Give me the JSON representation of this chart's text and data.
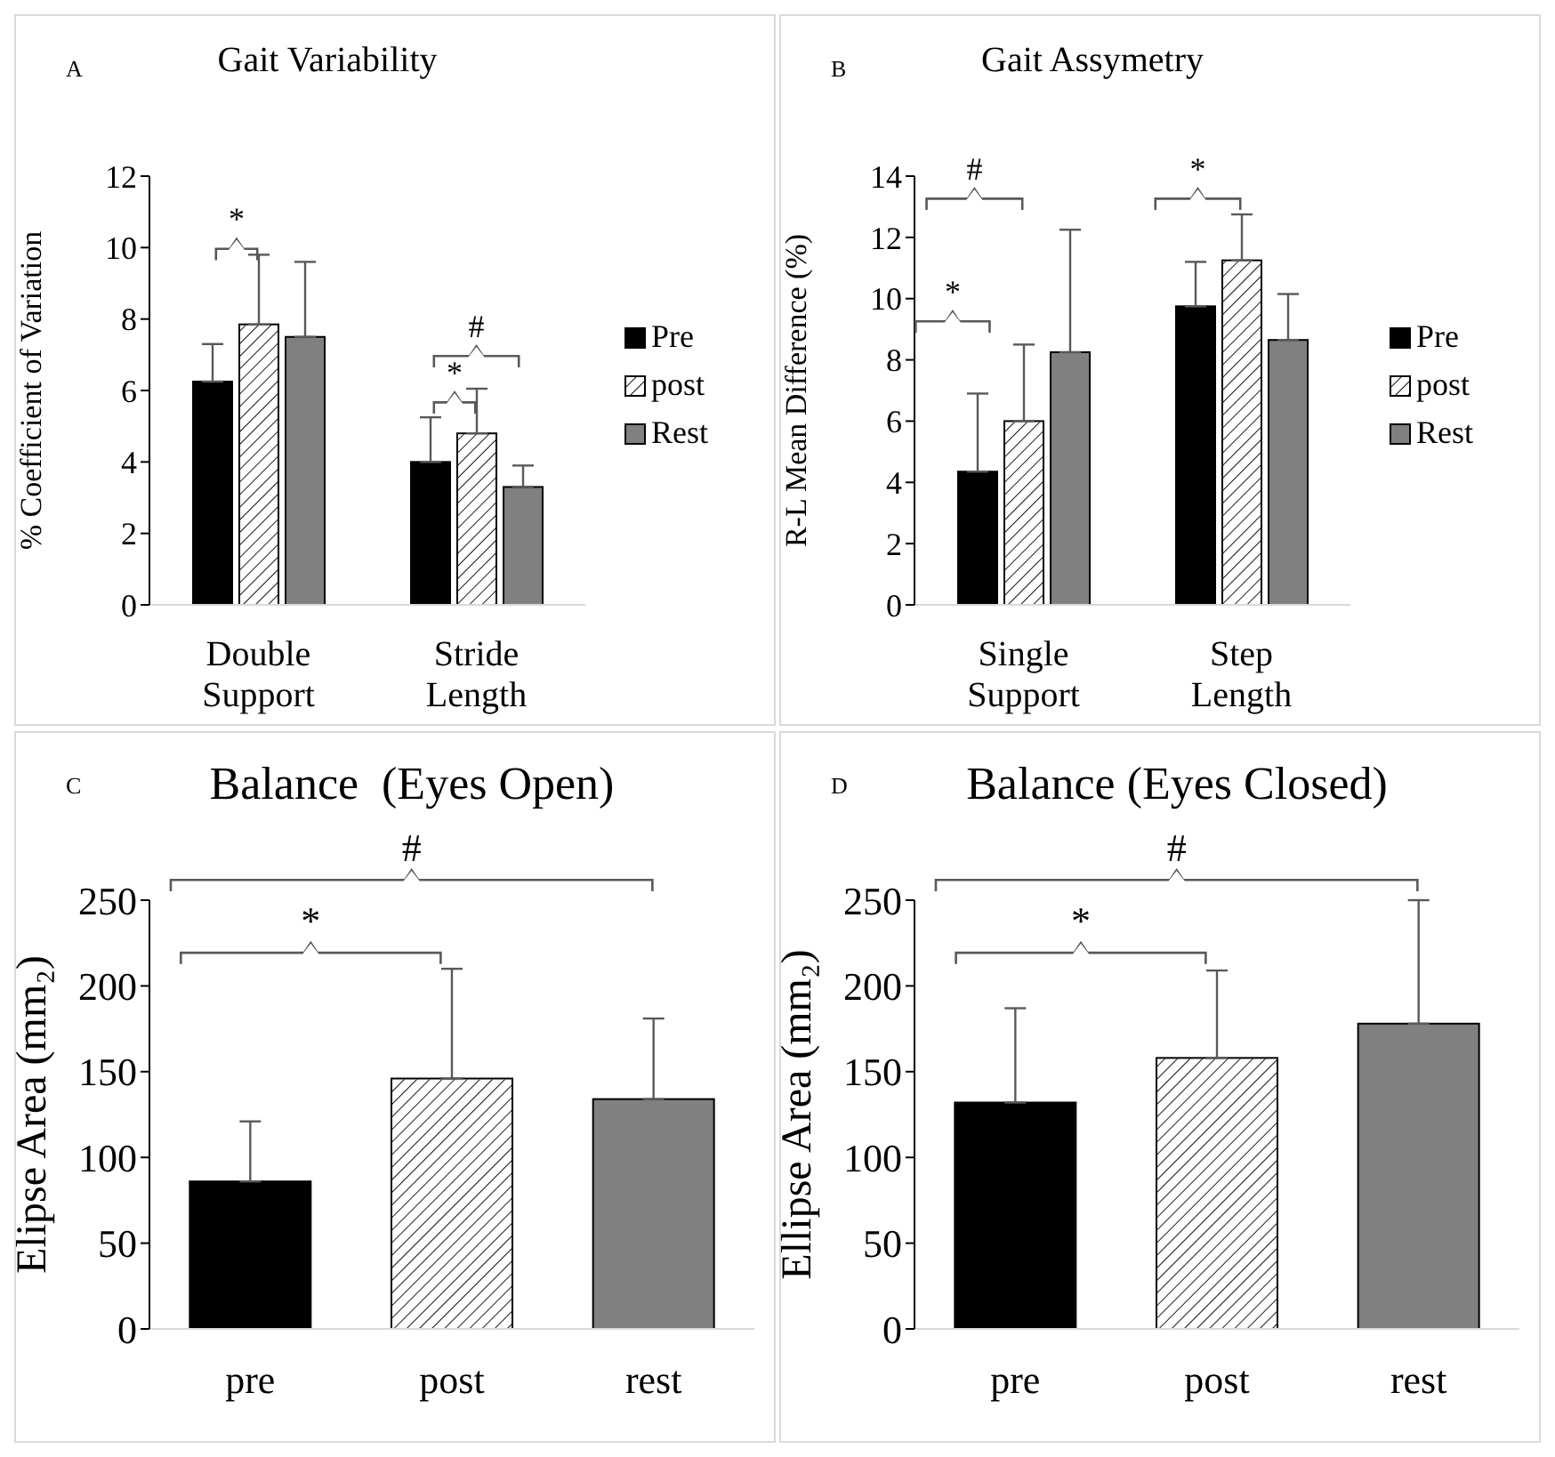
{
  "chart_data": [
    {
      "type": "bar",
      "title": "Gait Variability",
      "ylabel": "% Coefficient of Variation",
      "categories": [
        "Double Support",
        "Stride Length"
      ],
      "series": [
        {
          "name": "Pre",
          "color": "#000000",
          "values": [
            6.25,
            4.0
          ],
          "errors": [
            [
              6.25,
              7.3
            ],
            [
              4.0,
              5.25
            ]
          ]
        },
        {
          "name": "post",
          "color": "#ffffff",
          "values": [
            7.85,
            4.8
          ],
          "errors": [
            [
              7.85,
              9.8
            ],
            [
              4.8,
              6.05
            ]
          ]
        },
        {
          "name": "Rest",
          "color": "#808080",
          "values": [
            7.5,
            3.3
          ],
          "errors": [
            [
              7.5,
              9.6
            ],
            [
              3.3,
              3.9
            ]
          ]
        }
      ],
      "ylim": [
        0,
        12
      ],
      "yticks": [
        0,
        2,
        4,
        6,
        8,
        10,
        12
      ],
      "legend": "right",
      "annotations": [
        "A",
        "*",
        "*",
        "#"
      ]
    },
    {
      "type": "bar",
      "title": "Gait Assymetry",
      "ylabel": "R-L Mean Difference (%)",
      "categories": [
        "Single Support",
        "Step Length"
      ],
      "series": [
        {
          "name": "Pre",
          "color": "#000000",
          "values": [
            4.35,
            9.75
          ],
          "errors": [
            [
              4.35,
              6.9
            ],
            [
              9.75,
              11.2
            ]
          ]
        },
        {
          "name": "post",
          "color": "#ffffff",
          "values": [
            6.0,
            11.25
          ],
          "errors": [
            [
              6.0,
              8.5
            ],
            [
              11.25,
              12.75
            ]
          ]
        },
        {
          "name": "Rest",
          "color": "#808080",
          "values": [
            8.25,
            8.65
          ],
          "errors": [
            [
              8.25,
              12.25
            ],
            [
              8.65,
              10.15
            ]
          ]
        }
      ],
      "ylim": [
        0,
        14
      ],
      "yticks": [
        0,
        2,
        4,
        6,
        8,
        10,
        12,
        14
      ],
      "legend": "right",
      "annotations": [
        "B",
        "#",
        "*",
        "*"
      ]
    },
    {
      "type": "bar",
      "title": "Balance  (Eyes Open)",
      "ylabel": "Elipse Area (mm₂)",
      "categories": [
        "pre",
        "post",
        "rest"
      ],
      "values": [
        86,
        146,
        134
      ],
      "colors": [
        "#000000",
        "#ffffff",
        "#808080"
      ],
      "errors": [
        [
          86,
          121
        ],
        [
          146,
          210
        ],
        [
          134,
          181
        ]
      ],
      "ylim": [
        0,
        250
      ],
      "yticks": [
        0,
        50,
        100,
        150,
        200,
        250
      ],
      "annotations": [
        "C",
        "#",
        "*"
      ]
    },
    {
      "type": "bar",
      "title": "Balance (Eyes Closed)",
      "ylabel": "Ellipse Area (mm₂)",
      "categories": [
        "pre",
        "post",
        "rest"
      ],
      "values": [
        132,
        158,
        178
      ],
      "colors": [
        "#000000",
        "#ffffff",
        "#808080"
      ],
      "errors": [
        [
          132,
          187
        ],
        [
          158,
          209
        ],
        [
          178,
          250
        ]
      ],
      "ylim": [
        0,
        250
      ],
      "yticks": [
        0,
        50,
        100,
        150,
        200,
        250
      ],
      "annotations": [
        "D",
        "#",
        "*"
      ]
    }
  ]
}
